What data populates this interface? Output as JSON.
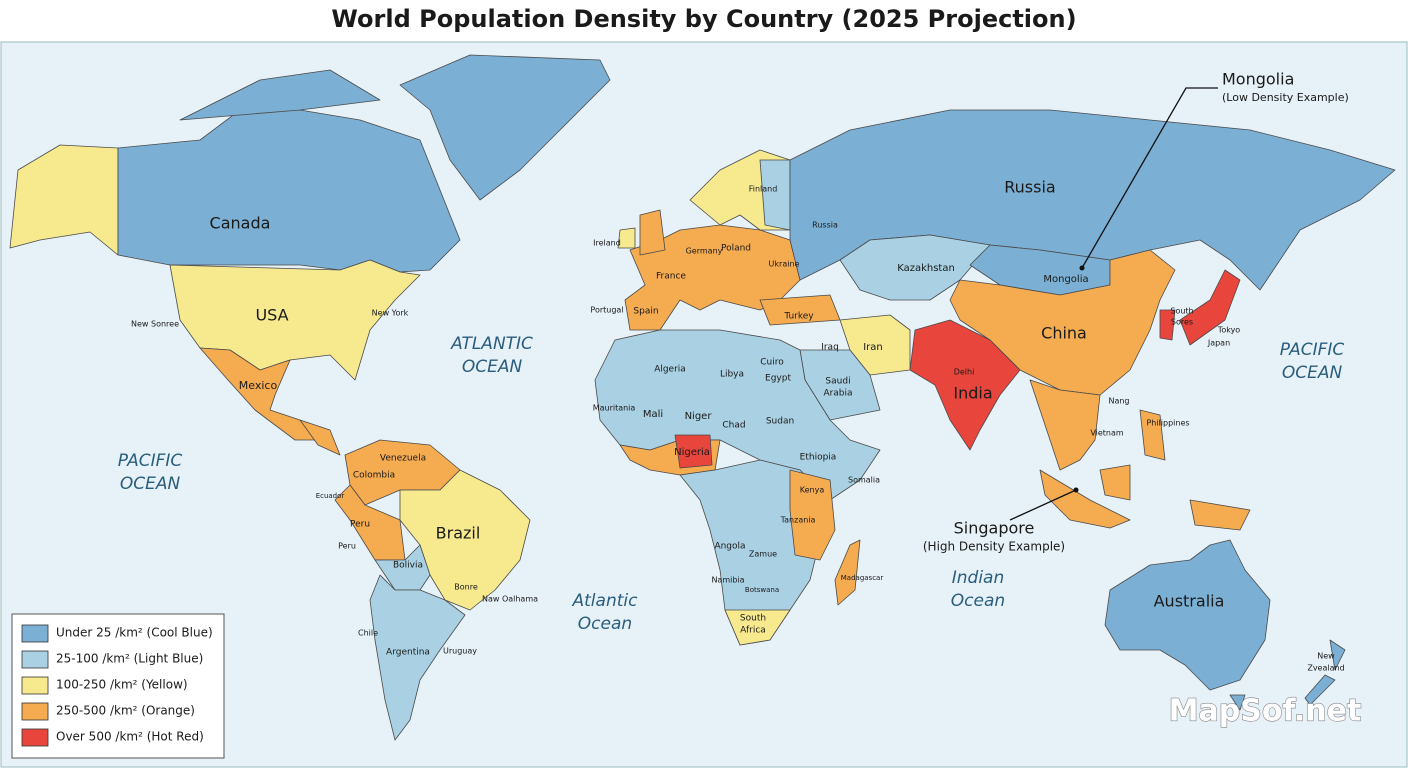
{
  "title": "World Population Density by Country (2025 Projection)",
  "legend": {
    "items": [
      {
        "label": "Under 25 /km² (Cool Blue)",
        "color": "#7bafd4"
      },
      {
        "label": "25-100 /km² (Light Blue)",
        "color": "#a9d0e3"
      },
      {
        "label": "100-250 /km² (Yellow)",
        "color": "#f7e98e"
      },
      {
        "label": "250-500 /km² (Orange)",
        "color": "#f5ab50"
      },
      {
        "label": "Over 500 /km² (Hot Red)",
        "color": "#e8453c"
      }
    ]
  },
  "oceans": [
    {
      "lines": [
        "PACIFIC",
        "OCEAN"
      ]
    },
    {
      "lines": [
        "ATLANTIC",
        "OCEAN"
      ]
    },
    {
      "lines": [
        "PACIFIC",
        "OCEAN"
      ]
    },
    {
      "lines": [
        "Atlantic",
        "Ocean"
      ]
    },
    {
      "lines": [
        "Indian",
        "Ocean"
      ]
    }
  ],
  "labels": [
    "Canada",
    "USA",
    "Mexico",
    "Brazil",
    "Russia",
    "China",
    "India",
    "Australia",
    "Colombia",
    "Venezuela",
    "Peru",
    "Bolivia",
    "Argentina",
    "Chile",
    "Ecuador",
    "Peru",
    "Mongolia",
    "Kazakhstan",
    "Iran",
    "Turkey",
    "Iraq",
    "Saudi",
    "Arabia",
    "Cuiro",
    "Egypt",
    "Libya",
    "Algeria",
    "Mali",
    "Niger",
    "Chad",
    "Sudan",
    "Nigeria",
    "Ethiopia",
    "Kenya",
    "Tanzania",
    "Angola",
    "Zamue",
    "Namibia",
    "Botswana",
    "South",
    "Africa",
    "Mauritania",
    "Somalia",
    "Madagascar",
    "New",
    "Zvealand",
    "Japan",
    "Tokyo",
    "South",
    "Sores",
    "Philippines",
    "Vietnam",
    "Finland",
    "Poland",
    "Ukraine",
    "Germany",
    "France",
    "Spain",
    "Portugal",
    "Ireland",
    "Delhi",
    "Nang",
    "Russia",
    "New York",
    "New Sonree",
    "Bonre",
    "Naw Oalhama",
    "Uruguay"
  ],
  "annotations": [
    {
      "title": "Mongolia",
      "note": "(Low Density Example)"
    },
    {
      "title": "Singapore",
      "note": "(High Density Example)"
    }
  ],
  "watermark": "MapSof.net"
}
